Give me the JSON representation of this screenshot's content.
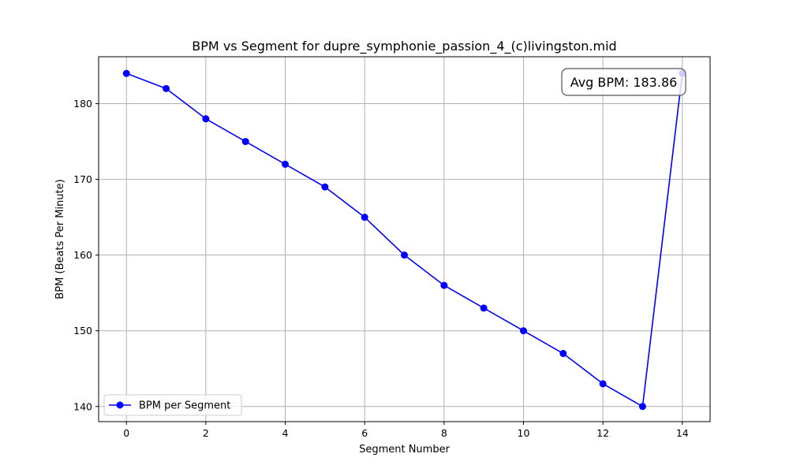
{
  "chart_data": {
    "type": "line",
    "title": "BPM vs Segment for dupre_symphonie_passion_4_(c)livingston.mid",
    "xlabel": "Segment Number",
    "ylabel": "BPM (Beats Per Minute)",
    "x": [
      0,
      1,
      2,
      3,
      4,
      5,
      6,
      7,
      8,
      9,
      10,
      11,
      12,
      13,
      14
    ],
    "series": [
      {
        "name": "BPM per Segment",
        "values": [
          184,
          182,
          178,
          175,
          172,
          169,
          165,
          160,
          156,
          153,
          150,
          147,
          143,
          140,
          184
        ],
        "color": "#0000ff",
        "marker": "circle"
      }
    ],
    "xlim": [
      -0.7,
      14.7
    ],
    "ylim": [
      138,
      186.2
    ],
    "xticks": [
      0,
      2,
      4,
      6,
      8,
      10,
      12,
      14
    ],
    "yticks": [
      140,
      150,
      160,
      170,
      180
    ],
    "grid": true,
    "legend": {
      "placement": "lower-left",
      "label": "BPM per Segment"
    },
    "annotation": {
      "text": "Avg BPM: 183.86",
      "placement": "top-right"
    }
  },
  "colors": {
    "series": "#0000ff",
    "grid": "#b0b0b0",
    "axes": "#000000",
    "annotation_border": "#555555"
  }
}
